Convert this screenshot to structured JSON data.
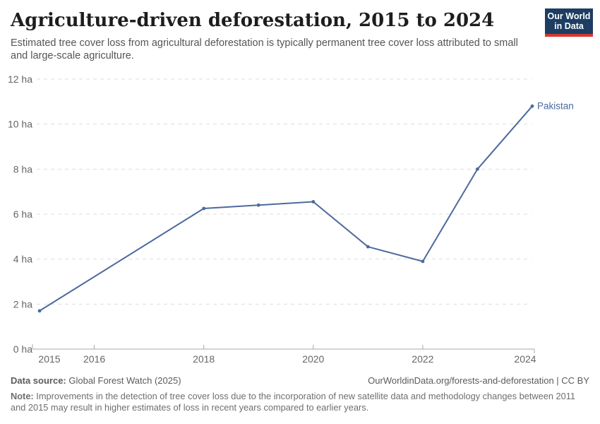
{
  "header": {
    "title": "Agriculture-driven deforestation, 2015 to 2024",
    "subtitle": "Estimated tree cover loss from agricultural deforestation is typically permanent tree cover loss attributed to small and large-scale agriculture.",
    "logo": {
      "line1": "Our World",
      "line2": "in Data",
      "bg_color": "#1d3d63",
      "accent_color": "#d7382e"
    }
  },
  "chart_data": {
    "type": "line",
    "title": "Agriculture-driven deforestation, 2015 to 2024",
    "unit": "ha",
    "xlim": [
      2015,
      2024
    ],
    "ylim": [
      0,
      12
    ],
    "grid": "horizontal-dashed",
    "legend_position": "end-of-line",
    "series": [
      {
        "name": "Pakistan",
        "color": "#4c6a9c",
        "points": [
          {
            "x": 2015,
            "y": 1.7
          },
          {
            "x": 2018,
            "y": 6.25
          },
          {
            "x": 2019,
            "y": 6.4
          },
          {
            "x": 2020,
            "y": 6.55
          },
          {
            "x": 2021,
            "y": 4.55
          },
          {
            "x": 2022,
            "y": 3.9
          },
          {
            "x": 2023,
            "y": 8.0
          },
          {
            "x": 2024,
            "y": 10.8
          }
        ]
      }
    ],
    "yticks": [
      {
        "value": 0,
        "label": "0 ha"
      },
      {
        "value": 2,
        "label": "2 ha"
      },
      {
        "value": 4,
        "label": "4 ha"
      },
      {
        "value": 6,
        "label": "6 ha"
      },
      {
        "value": 8,
        "label": "8 ha"
      },
      {
        "value": 10,
        "label": "10 ha"
      },
      {
        "value": 12,
        "label": "12 ha"
      }
    ],
    "xticks": [
      {
        "value": 2015,
        "label": "2015"
      },
      {
        "value": 2016,
        "label": "2016"
      },
      {
        "value": 2018,
        "label": "2018"
      },
      {
        "value": 2020,
        "label": "2020"
      },
      {
        "value": 2022,
        "label": "2022"
      },
      {
        "value": 2024,
        "label": "2024"
      }
    ],
    "colors": {
      "grid": "#dddddd",
      "axis": "#a8a8a8",
      "tick_label": "#666666",
      "series": "#4c6a9c"
    }
  },
  "footer": {
    "datasource_label": "Data source:",
    "datasource_value": " Global Forest Watch (2025)",
    "link": "OurWorldinData.org/forests-and-deforestation | CC BY",
    "note_label": "Note:",
    "note_value": " Improvements in the detection of tree cover loss due to the incorporation of new satellite data and methodology changes between 2011 and 2015 may result in higher estimates of loss in recent years compared to earlier years."
  }
}
